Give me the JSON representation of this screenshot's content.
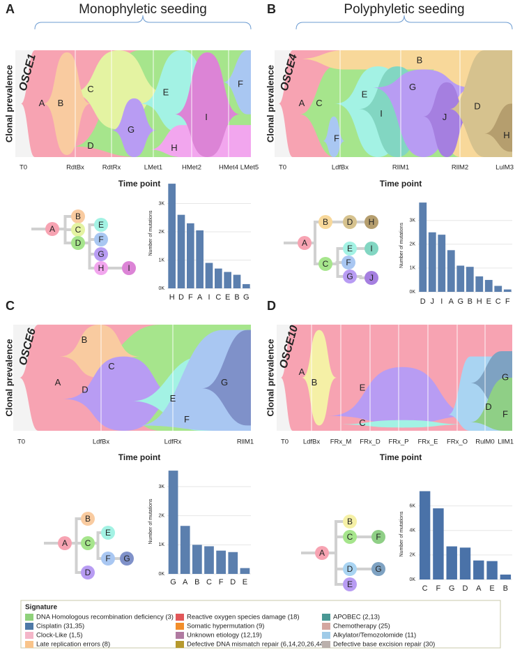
{
  "panels": [
    {
      "letter": "A",
      "heading": "Monophyletic seeding",
      "patient": "OSCE1",
      "y_label": "Clonal prevalence",
      "time_title": "Time point",
      "time_points": [
        "T0",
        "RdtBx",
        "RdtRx",
        "LMet1",
        "HMet2",
        "HMet4",
        "LMet5"
      ],
      "clones": [
        "A",
        "D",
        "C",
        "B",
        "G",
        "E",
        "H",
        "I",
        "F"
      ],
      "tree_nodes": [
        "A",
        "B",
        "C",
        "D",
        "E",
        "F",
        "G",
        "H",
        "I"
      ]
    },
    {
      "letter": "B",
      "heading": "Polyphyletic seeding",
      "patient": "OSCE4",
      "y_label": "Clonal prevalence",
      "time_title": "Time point",
      "time_points": [
        "T0",
        "LdfBx",
        "RllM1",
        "RllM2",
        "LulM3"
      ],
      "clones": [
        "A",
        "C",
        "B",
        "F",
        "E",
        "I",
        "G",
        "J",
        "D",
        "H"
      ],
      "tree_nodes": [
        "A",
        "B",
        "D",
        "H",
        "C",
        "E",
        "F",
        "G",
        "I",
        "J"
      ]
    },
    {
      "letter": "C",
      "patient": "OSCE6",
      "y_label": "Clonal prevalence",
      "time_title": "Time point",
      "time_points": [
        "T0",
        "LdfBx",
        "LdfRx",
        "RllM1"
      ],
      "clones": [
        "A",
        "C",
        "B",
        "D",
        "E",
        "F",
        "G"
      ],
      "tree_nodes": [
        "A",
        "B",
        "C",
        "D",
        "E",
        "F",
        "G"
      ]
    },
    {
      "letter": "D",
      "patient": "OSCE10",
      "y_label": "Clonal prevalence",
      "time_title": "Time point",
      "time_points": [
        "T0",
        "LdfBx",
        "FRx_M",
        "FRx_D",
        "FRx_P",
        "FRx_E",
        "FRx_O",
        "RulM0",
        "LllM1"
      ],
      "clones": [
        "A",
        "B",
        "E",
        "C",
        "D",
        "G",
        "F"
      ],
      "tree_nodes": [
        "A",
        "B",
        "C",
        "F",
        "D",
        "G",
        "E"
      ]
    }
  ],
  "chart_data": [
    {
      "type": "bar",
      "y_label": "Number of mutations",
      "color": "#5b7fae",
      "categories": [
        "H",
        "D",
        "F",
        "A",
        "I",
        "C",
        "E",
        "B",
        "G"
      ],
      "values": [
        3700,
        2600,
        2300,
        2050,
        900,
        700,
        580,
        480,
        150
      ],
      "ylim": [
        0,
        3900
      ],
      "yticks": [
        {
          "value": 0,
          "label": "0K"
        },
        {
          "value": 1000,
          "label": "1K"
        },
        {
          "value": 2000,
          "label": "2K"
        },
        {
          "value": 3000,
          "label": "3K"
        }
      ]
    },
    {
      "type": "bar",
      "y_label": "Number of mutations",
      "color": "#5b7fae",
      "categories": [
        "D",
        "J",
        "I",
        "A",
        "G",
        "B",
        "H",
        "E",
        "C",
        "F"
      ],
      "values": [
        3750,
        2500,
        2400,
        1750,
        1100,
        1050,
        650,
        500,
        250,
        100
      ],
      "ylim": [
        0,
        3900
      ],
      "yticks": [
        {
          "value": 0,
          "label": "0K"
        },
        {
          "value": 1000,
          "label": "1K"
        },
        {
          "value": 2000,
          "label": "2K"
        },
        {
          "value": 3000,
          "label": "3K"
        }
      ]
    },
    {
      "type": "bar",
      "y_label": "Number of mutations",
      "color": "#5b7fae",
      "categories": [
        "G",
        "A",
        "B",
        "C",
        "F",
        "D",
        "E"
      ],
      "values": [
        3550,
        1650,
        1000,
        950,
        800,
        750,
        200
      ],
      "ylim": [
        0,
        3600
      ],
      "yticks": [
        {
          "value": 0,
          "label": "0K"
        },
        {
          "value": 1000,
          "label": "1K"
        },
        {
          "value": 2000,
          "label": "2K"
        },
        {
          "value": 3000,
          "label": "3K"
        }
      ]
    },
    {
      "type": "bar",
      "y_label": "Number of mutations",
      "color": "#4a72a8",
      "categories": [
        "C",
        "F",
        "G",
        "D",
        "A",
        "E",
        "B"
      ],
      "values": [
        7200,
        5800,
        2700,
        2600,
        1550,
        1500,
        400
      ],
      "ylim": [
        0,
        7400
      ],
      "yticks": [
        {
          "value": 0,
          "label": "0K"
        },
        {
          "value": 2000,
          "label": "2K"
        },
        {
          "value": 4000,
          "label": "4K"
        },
        {
          "value": 6000,
          "label": "6K"
        }
      ]
    }
  ],
  "legend": {
    "title": "Signature",
    "items": [
      {
        "label": "DNA Homologous recombination deficiency (3)",
        "color": "#8fd17a"
      },
      {
        "label": "Cisplatin (31,35)",
        "color": "#4e79a7"
      },
      {
        "label": "Clock-Like (1,5)",
        "color": "#f4b6c8"
      },
      {
        "label": "Late replication errors (8)",
        "color": "#f9c48a"
      },
      {
        "label": "Reactive oxygen species damage (18)",
        "color": "#e15759"
      },
      {
        "label": "Somatic hypermutation (9)",
        "color": "#f28e2b"
      },
      {
        "label": "Unknown etiology (12,19)",
        "color": "#b07aa1"
      },
      {
        "label": "Defective DNA mismatch repair (6,14,20,26,44)",
        "color": "#b6992d"
      },
      {
        "label": "APOBEC (2,13)",
        "color": "#499894"
      },
      {
        "label": "Chemotherapy (25)",
        "color": "#d4a6a0"
      },
      {
        "label": "Alkylator/Temozolomide (11)",
        "color": "#a0cbe8"
      },
      {
        "label": "Defective base excision repair (30)",
        "color": "#bab0ac"
      }
    ]
  }
}
